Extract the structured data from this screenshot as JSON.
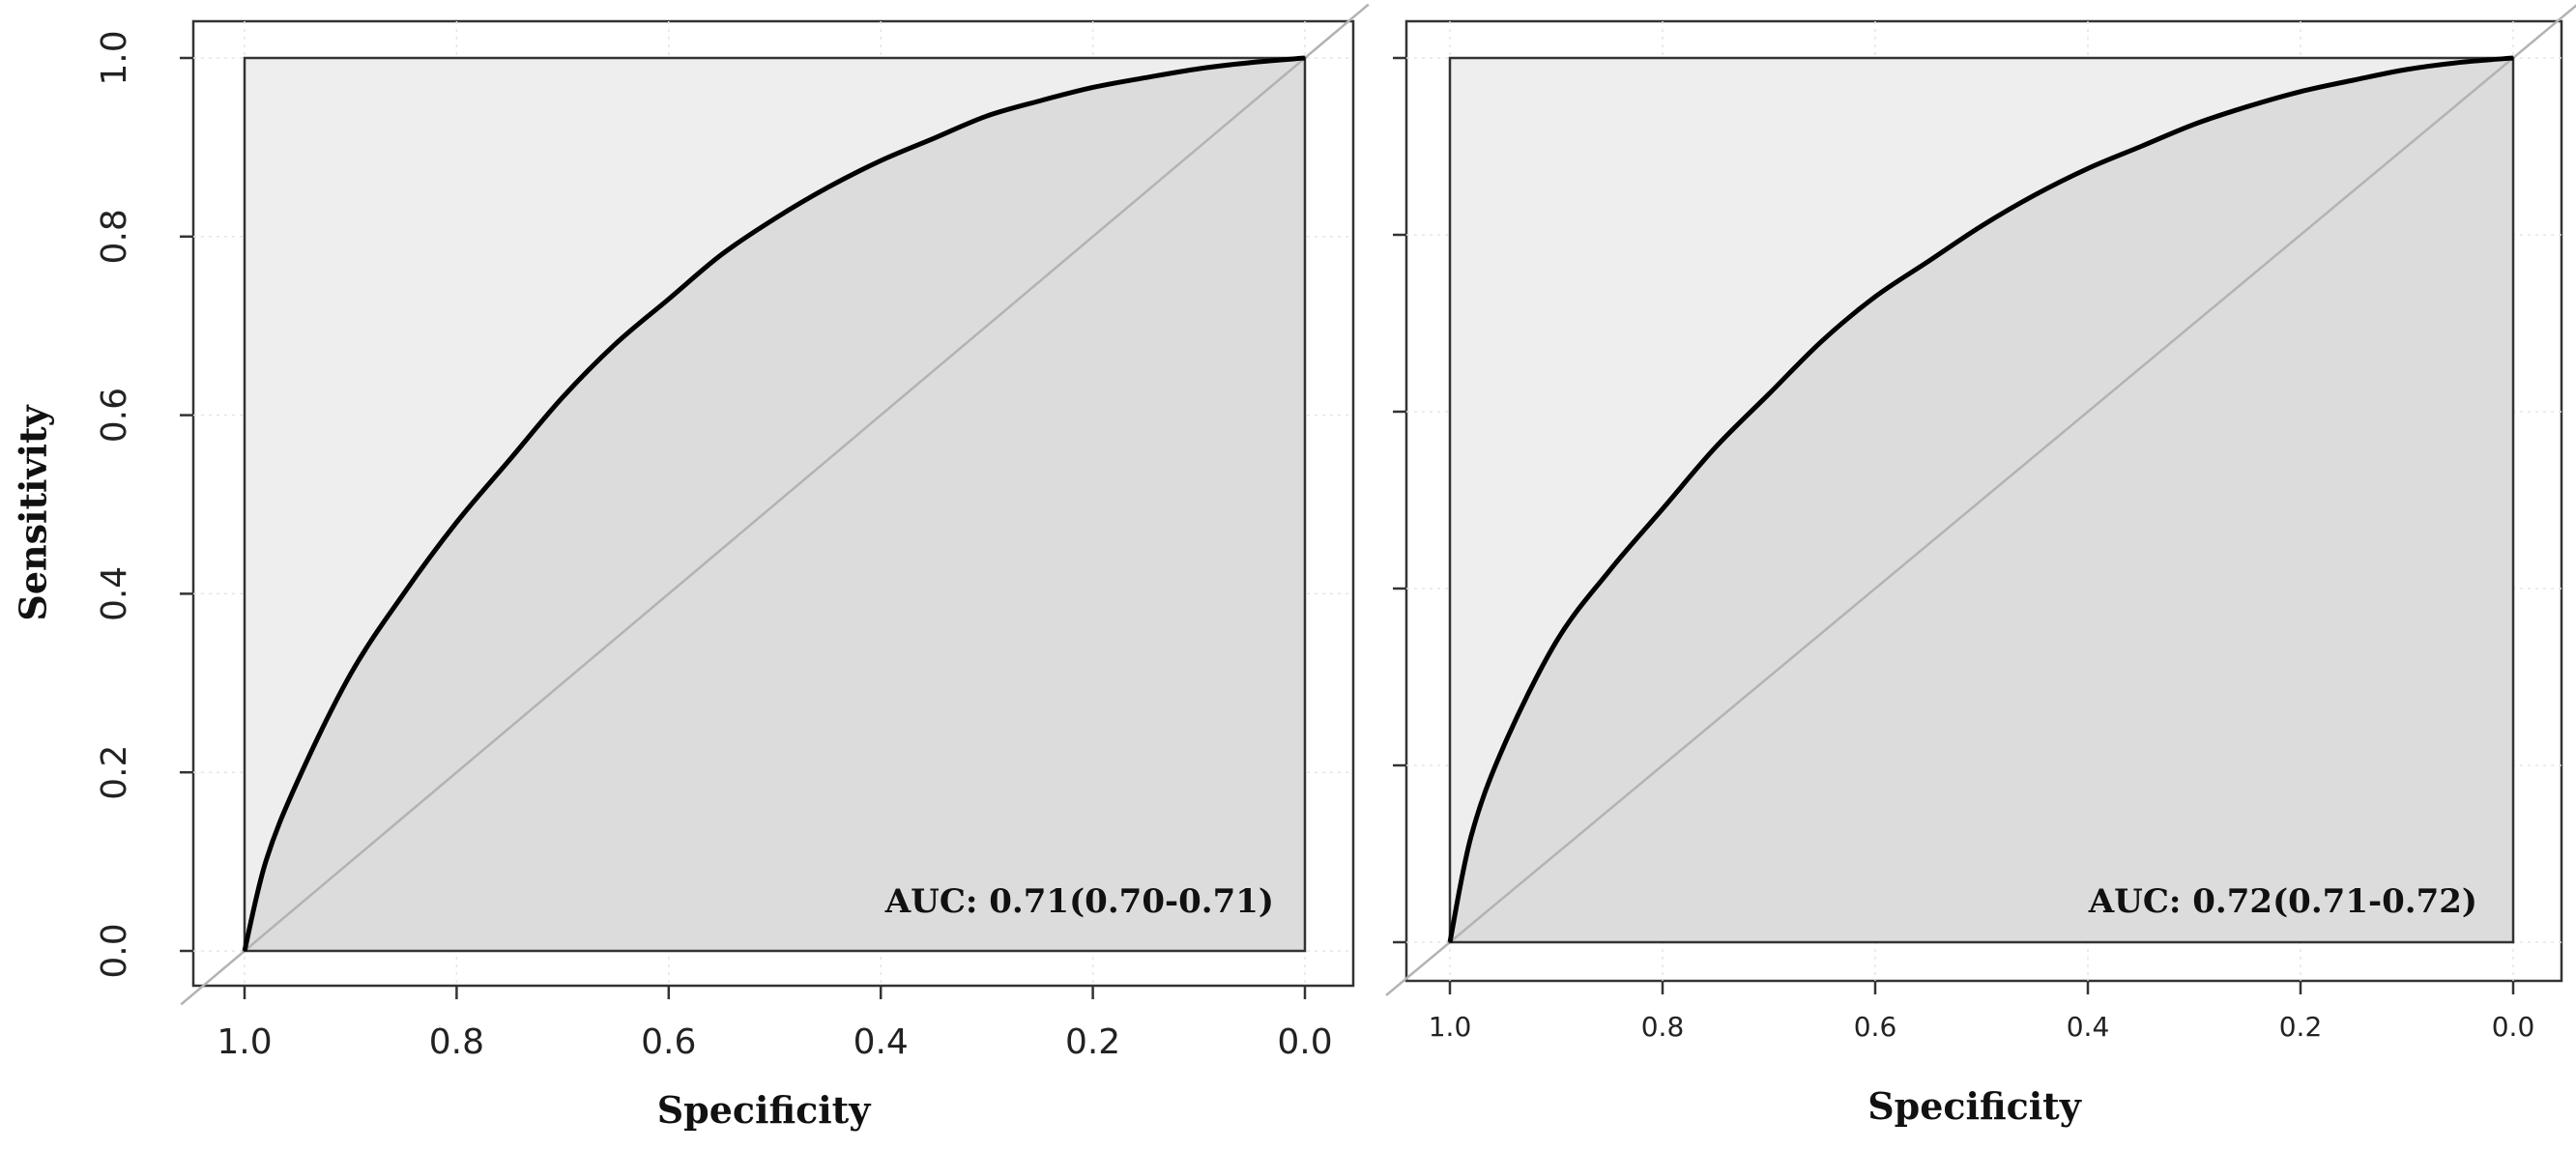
{
  "chart_data": [
    {
      "type": "line",
      "title": "",
      "xlabel": "Specificity",
      "ylabel": "Sensitivity",
      "x_reversed": true,
      "xlim": [
        1.0,
        0.0
      ],
      "ylim": [
        0.0,
        1.0
      ],
      "x_ticks": [
        "1.0",
        "0.8",
        "0.6",
        "0.4",
        "0.2",
        "0.0"
      ],
      "y_ticks": [
        "0.0",
        "0.2",
        "0.4",
        "0.6",
        "0.8",
        "1.0"
      ],
      "annotation": "AUC: 0.71(0.70-0.71)",
      "grid": true,
      "series": [
        {
          "x": [
            1.0,
            0.98,
            0.95,
            0.9,
            0.85,
            0.8,
            0.75,
            0.7,
            0.65,
            0.6,
            0.55,
            0.5,
            0.45,
            0.4,
            0.35,
            0.3,
            0.25,
            0.2,
            0.15,
            0.1,
            0.05,
            0.0
          ],
          "y": [
            0.0,
            0.1,
            0.19,
            0.31,
            0.4,
            0.48,
            0.55,
            0.62,
            0.68,
            0.73,
            0.78,
            0.82,
            0.855,
            0.885,
            0.91,
            0.935,
            0.952,
            0.967,
            0.978,
            0.988,
            0.995,
            1.0
          ]
        }
      ],
      "diagonal": true,
      "colors": {
        "curve": "#000000",
        "diagonal": "#b3b3b3",
        "auc_fill": "#dcdcdc",
        "panel_fill": "#eeeeee",
        "outer_bg": "#ffffff",
        "frame": "#333333"
      }
    },
    {
      "type": "line",
      "title": "",
      "xlabel": "Specificity",
      "ylabel": "",
      "x_reversed": true,
      "xlim": [
        1.0,
        0.0
      ],
      "ylim": [
        0.0,
        1.0
      ],
      "x_ticks": [
        "1.0",
        "0.8",
        "0.6",
        "0.4",
        "0.2",
        "0.0"
      ],
      "y_ticks": [],
      "annotation": "AUC: 0.72(0.71-0.72)",
      "grid": true,
      "series": [
        {
          "x": [
            1.0,
            0.98,
            0.95,
            0.9,
            0.85,
            0.8,
            0.75,
            0.7,
            0.65,
            0.6,
            0.55,
            0.5,
            0.45,
            0.4,
            0.35,
            0.3,
            0.25,
            0.2,
            0.15,
            0.1,
            0.05,
            0.0
          ],
          "y": [
            0.0,
            0.12,
            0.22,
            0.34,
            0.42,
            0.49,
            0.56,
            0.62,
            0.68,
            0.73,
            0.77,
            0.81,
            0.845,
            0.875,
            0.9,
            0.925,
            0.945,
            0.962,
            0.975,
            0.987,
            0.995,
            1.0
          ]
        }
      ],
      "diagonal": true,
      "colors": {
        "curve": "#000000",
        "diagonal": "#b3b3b3",
        "auc_fill": "#dcdcdc",
        "panel_fill": "#eeeeee",
        "outer_bg": "#ffffff",
        "frame": "#333333"
      }
    }
  ]
}
